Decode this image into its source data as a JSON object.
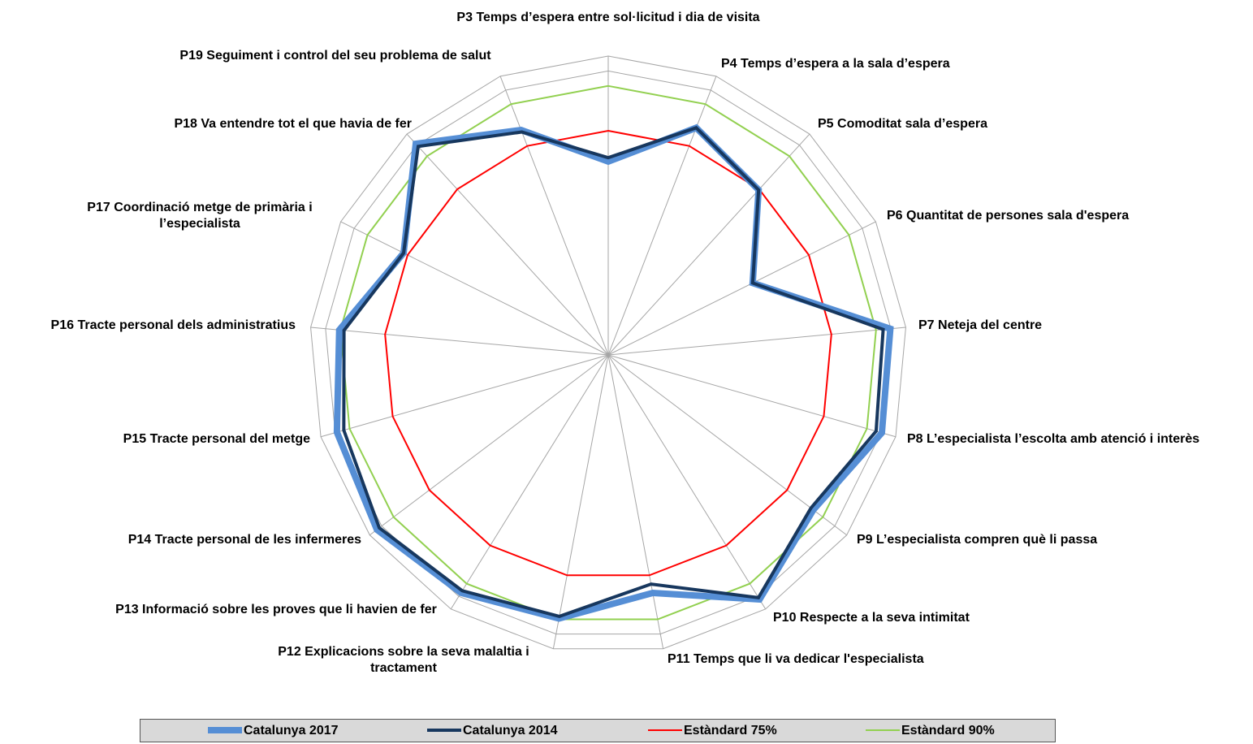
{
  "chart_data": {
    "type": "radar",
    "categories": [
      "P3 Temps d’espera entre sol·licitud  i dia de visita",
      "P4 Temps d’espera a la sala d’espera",
      "P5 Comoditat sala d’espera",
      "P6 Quantitat de persones sala d'espera",
      "P7 Neteja del centre",
      "P8 L’especialista l’escolta amb atenció i interès",
      "P9 L’especialista compren què li passa",
      "P10 Respecte a  la seva intimitat",
      "P11 Temps que li va dedicar l'especialista",
      "P12 Explicacions sobre la seva malaltia i tractament",
      "P13 Informació sobre les proves que li havien de fer",
      "P14 Tracte personal de les infermeres",
      "P15 Tracte personal del metge",
      "P16 Tracte personal dels administratius",
      "P17 Coordinació metge de primària i l’especialista",
      "P18 Va entendre tot el que havia de fer",
      "P19 Seguiment i control del seu problema de salut"
    ],
    "series": [
      {
        "name": "Catalunya 2017",
        "color": "#558ed5",
        "values": [
          64.7,
          81.5,
          74.7,
          54,
          94.8,
          95.2,
          86,
          96.2,
          81,
          89.7,
          93.6,
          97,
          94.4,
          90.4,
          76.5,
          95.6,
          80.7
        ]
      },
      {
        "name": "Catalunya 2014",
        "color": "#17375e",
        "values": [
          66,
          81.5,
          74.7,
          54,
          92.4,
          93.2,
          85,
          95.5,
          78,
          89,
          92.8,
          96,
          92,
          88.8,
          76.5,
          94.4,
          80
        ]
      },
      {
        "name": "Estàndard 75%",
        "color": "#ff0000",
        "values": [
          75,
          75,
          75,
          75,
          75,
          75,
          75,
          75,
          75,
          75,
          75,
          75,
          75,
          75,
          75,
          75,
          75
        ]
      },
      {
        "name": "Estàndard 90%",
        "color": "#92d050",
        "values": [
          90,
          90,
          90,
          90,
          90,
          90,
          90,
          90,
          90,
          90,
          90,
          90,
          90,
          90,
          90,
          90,
          90
        ]
      }
    ],
    "ylim": [
      0,
      100
    ],
    "yticks": [
      95,
      100
    ],
    "grid": true,
    "legend": "bottom"
  }
}
